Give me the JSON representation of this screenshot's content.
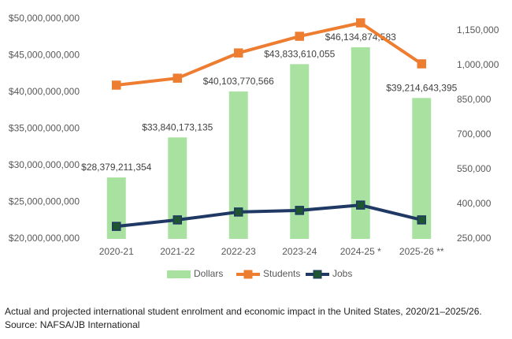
{
  "chart_data": {
    "type": "bar",
    "categories": [
      "2020-21",
      "2021-22",
      "2022-23",
      "2023-24",
      "2024-25 *",
      "2025-26 **"
    ],
    "series": [
      {
        "name": "Dollars",
        "type": "bar",
        "axis": "y",
        "color": "#a9e2a0",
        "values": [
          28379211354,
          33840173135,
          40103770566,
          43833610055,
          46134874583,
          39214643395
        ],
        "value_labels": [
          "$28,379,211,354",
          "$33,840,173,135",
          "$40,103,770,566",
          "$43,833,610,055",
          "$46,134,874,583",
          "$39,214,643,395"
        ]
      },
      {
        "name": "Students",
        "type": "line",
        "axis": "y2",
        "color": "#ed7d31",
        "marker_color": "#ed7d31",
        "values": [
          914000,
          944000,
          1053000,
          1125000,
          1183000,
          1006000
        ]
      },
      {
        "name": "Jobs",
        "type": "line",
        "axis": "y2",
        "color": "#1f3864",
        "marker_color": "#1e5631",
        "values": [
          304000,
          332000,
          366000,
          373000,
          396000,
          332000
        ]
      }
    ],
    "ylim": [
      20000000000,
      50000000000
    ],
    "yticks": [
      {
        "value": 20000000000,
        "label": "$20,000,000,000"
      },
      {
        "value": 25000000000,
        "label": "$25,000,000,000"
      },
      {
        "value": 30000000000,
        "label": "$30,000,000,000"
      },
      {
        "value": 35000000000,
        "label": "$35,000,000,000"
      },
      {
        "value": 40000000000,
        "label": "$40,000,000,000"
      },
      {
        "value": 45000000000,
        "label": "$45,000,000,000"
      },
      {
        "value": 50000000000,
        "label": "$50,000,000,000"
      }
    ],
    "y2lim": [
      250000,
      1200000
    ],
    "y2ticks": [
      {
        "value": 250000,
        "label": "250,000"
      },
      {
        "value": 400000,
        "label": "400,000"
      },
      {
        "value": 550000,
        "label": "550,000"
      },
      {
        "value": 700000,
        "label": "700,000"
      },
      {
        "value": 850000,
        "label": "850,000"
      },
      {
        "value": 1000000,
        "label": "1,000,000"
      },
      {
        "value": 1150000,
        "label": "1,150,000"
      }
    ],
    "grid": false,
    "legend": "bottom",
    "caption": "Actual and projected international student enrolment and economic impact in the United States, 2020/21–2025/26.",
    "source": "Source: NAFSA/JB International"
  }
}
